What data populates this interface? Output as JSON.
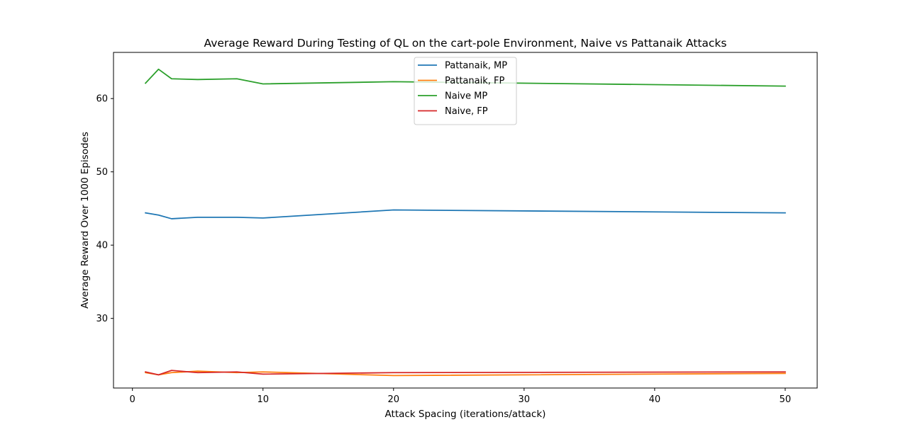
{
  "chart_data": {
    "type": "line",
    "title": "Average Reward During Testing of QL on the cart-pole Environment, Naive vs Pattanaik Attacks",
    "xlabel": "Attack Spacing (iterations/attack)",
    "ylabel": "Average Reward Over 1000 Episodes",
    "xlim": [
      -1.45,
      52.45
    ],
    "ylim": [
      20.5,
      66.3
    ],
    "xticks": [
      0,
      10,
      20,
      30,
      40,
      50
    ],
    "yticks": [
      30,
      40,
      50,
      60
    ],
    "grid": false,
    "legend_position": "upper center",
    "x": [
      1,
      2,
      3,
      5,
      8,
      10,
      20,
      50
    ],
    "series": [
      {
        "name": "Pattanaik, MP",
        "color": "#1f77b4",
        "values": [
          44.4,
          44.1,
          43.6,
          43.8,
          43.8,
          43.7,
          44.8,
          44.4
        ]
      },
      {
        "name": "Pattanaik, FP",
        "color": "#ff7f0e",
        "values": [
          22.6,
          22.3,
          22.6,
          22.8,
          22.6,
          22.7,
          22.2,
          22.5
        ]
      },
      {
        "name": "Naive MP",
        "color": "#2ca02c",
        "values": [
          62.1,
          64.0,
          62.7,
          62.6,
          62.7,
          62.0,
          62.3,
          61.7
        ]
      },
      {
        "name": "Naive, FP",
        "color": "#d62728",
        "values": [
          22.7,
          22.3,
          22.9,
          22.6,
          22.7,
          22.4,
          22.6,
          22.7
        ]
      }
    ]
  }
}
